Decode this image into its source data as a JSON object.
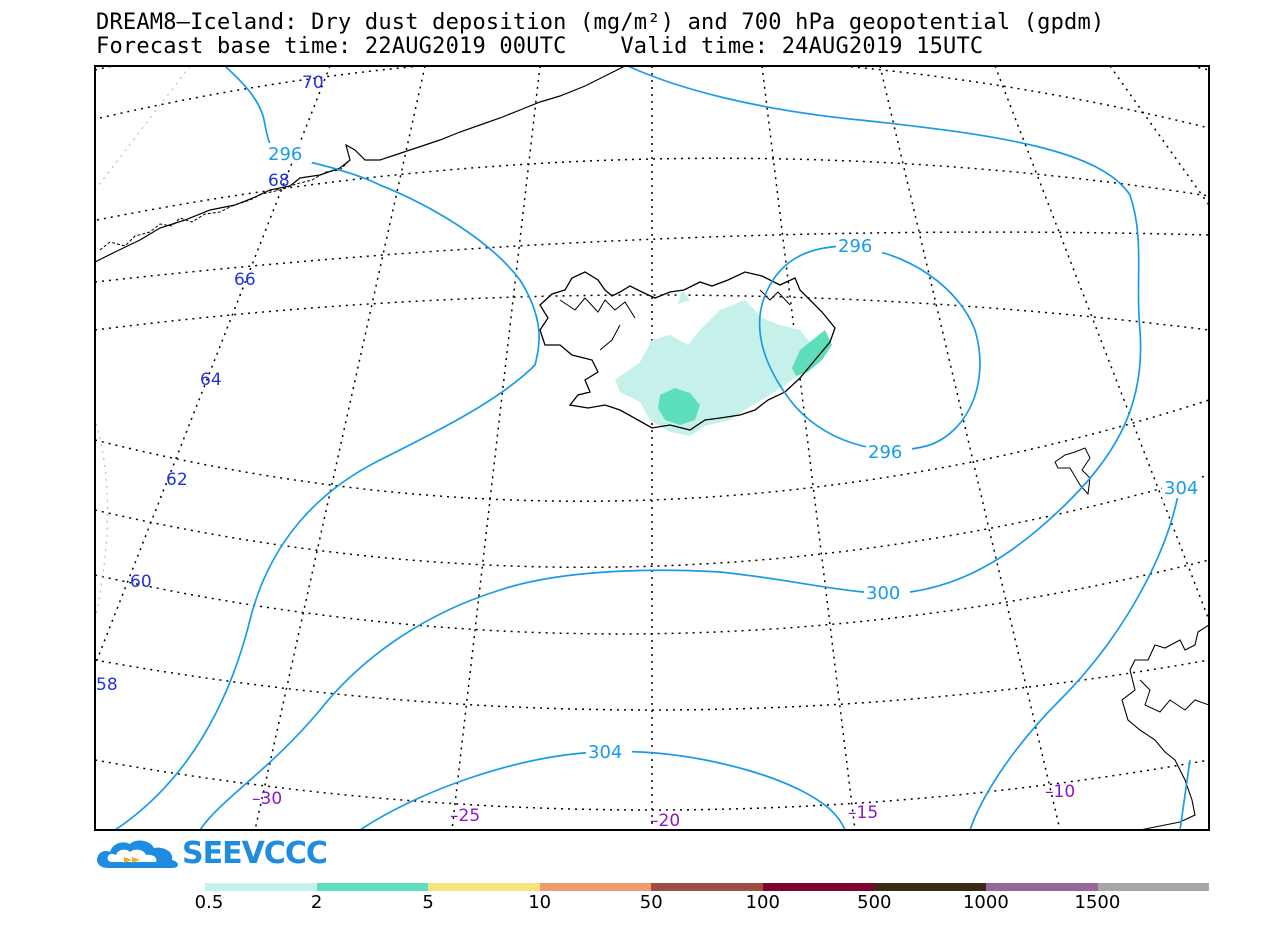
{
  "title_line1": "DREAM8—Iceland: Dry dust deposition (mg/m²) and 700 hPa geopotential (gpdm)",
  "title_line2": "Forecast base time: 22AUG2019 00UTC    Valid time: 24AUG2019 15UTC",
  "logo": {
    "text": "SEEVCCC",
    "color": "#1e8ce0",
    "icon": "cloud-logo-icon"
  },
  "colorbar": {
    "colors": [
      "#c6f1ea",
      "#5ddfbb",
      "#f8e27a",
      "#ef9c6d",
      "#a04d44",
      "#7e0530",
      "#3a2a17",
      "#95679a",
      "#a7a7a7"
    ],
    "labels": [
      "0.5",
      "2",
      "5",
      "10",
      "50",
      "100",
      "500",
      "1000",
      "1500"
    ]
  },
  "map": {
    "latitude_labels": [
      "70",
      "68",
      "66",
      "64",
      "62",
      "60",
      "58"
    ],
    "longitude_labels": [
      "–30",
      "–25",
      "–20",
      "–15",
      "–10"
    ],
    "contour_labels": [
      "296",
      "296",
      "296",
      "300",
      "304",
      "304"
    ],
    "contour_color": "#1a9be8",
    "lat_label_color": "#2233dd",
    "lon_label_color": "#8a18c8"
  }
}
